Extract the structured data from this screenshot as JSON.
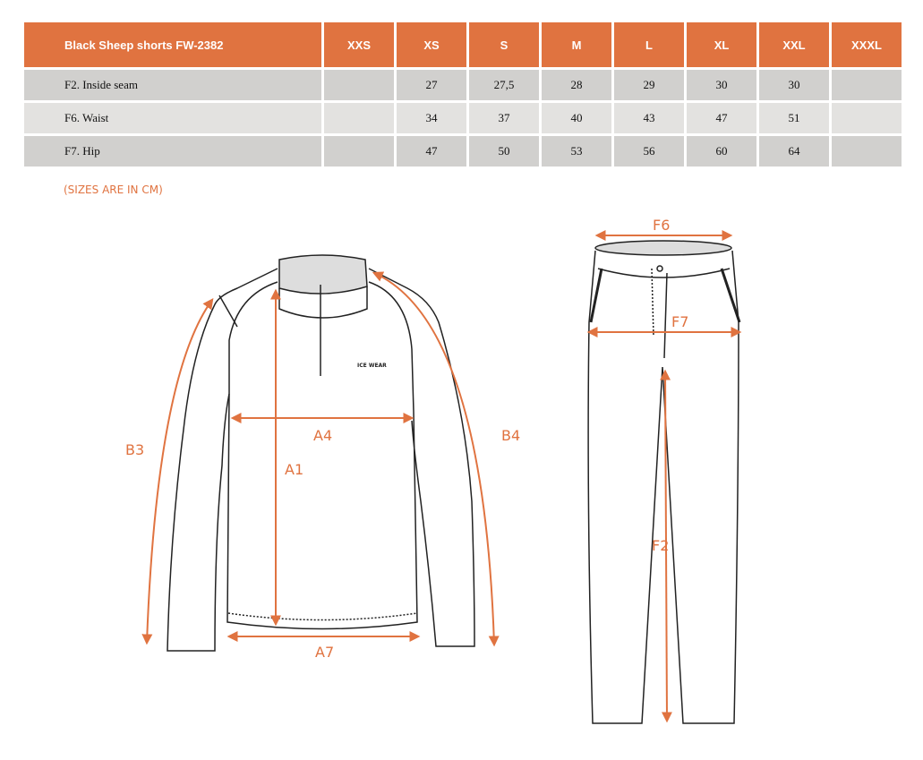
{
  "table": {
    "title": "Black Sheep shorts FW-2382",
    "sizes": [
      "XXS",
      "XS",
      "S",
      "M",
      "L",
      "XL",
      "XXL",
      "XXXL"
    ],
    "rows": [
      {
        "label": "F2. Inside seam",
        "values": [
          "",
          "27",
          "27,5",
          "28",
          "29",
          "30",
          "30",
          ""
        ]
      },
      {
        "label": "F6. Waist",
        "values": [
          "",
          "34",
          "37",
          "40",
          "43",
          "47",
          "51",
          ""
        ]
      },
      {
        "label": "F7. Hip",
        "values": [
          "",
          "47",
          "50",
          "53",
          "56",
          "60",
          "64",
          ""
        ]
      }
    ]
  },
  "note": "(SIZES ARE IN CM)",
  "jacket_labels": {
    "a1": "A1",
    "a4": "A4",
    "a7": "A7",
    "b3": "B3",
    "b4": "B4",
    "logo": "ICE WEAR"
  },
  "pants_labels": {
    "f2": "F2",
    "f6": "F6",
    "f7": "F7"
  },
  "colors": {
    "accent": "#e07340",
    "row_dark": "#d1d0ce",
    "row_light": "#e3e2e0"
  }
}
